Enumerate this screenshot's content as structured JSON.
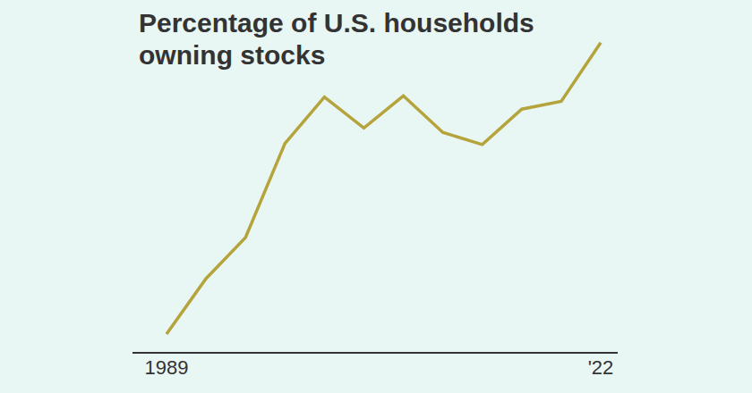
{
  "chart_data": {
    "type": "line",
    "title": "Percentage of U.S. households owning stocks",
    "categories": [
      "1989",
      null,
      null,
      null,
      null,
      null,
      null,
      null,
      null,
      null,
      null,
      "'22"
    ],
    "values": [
      31.7,
      36.7,
      40.4,
      48.9,
      53.1,
      50.3,
      53.2,
      49.9,
      48.8,
      52.0,
      52.7,
      58.0
    ],
    "color": "#b5a43c",
    "ylim": [
      30,
      60
    ],
    "tick_labels": "x",
    "grid": false,
    "marker": "none"
  }
}
